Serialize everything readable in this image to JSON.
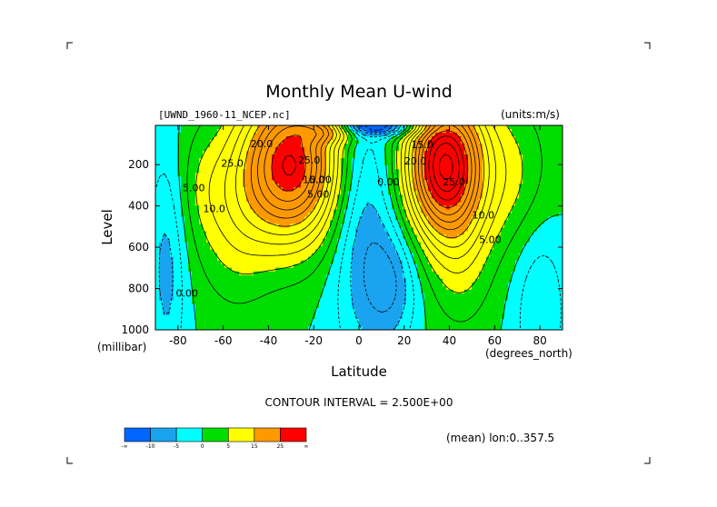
{
  "chart_data": {
    "type": "contour",
    "title": "Monthly Mean U-wind",
    "dataset_label": "[UWND_1960-11_NCEP.nc]",
    "units_label": "(units:m/s)",
    "xlabel": "Latitude",
    "ylabel": "Level",
    "x_units": "(degrees_north)",
    "y_units": "(millibar)",
    "xlim": [
      -90,
      90
    ],
    "ylim": [
      1000,
      10
    ],
    "x_ticks": [
      -80,
      -60,
      -40,
      -20,
      0,
      20,
      40,
      60,
      80
    ],
    "y_ticks": [
      200,
      400,
      600,
      800,
      1000
    ],
    "contour_interval_text": "CONTOUR INTERVAL = 2.500E+00",
    "footer_text": "(mean) lon:0..357.5",
    "jets": [
      {
        "lat": -30,
        "level": 200,
        "value": 27.5
      },
      {
        "lat": 38,
        "level": 200,
        "value": 32.5
      }
    ],
    "contour_labels": [
      {
        "text": "25.0",
        "lat": -56,
        "level": 210
      },
      {
        "text": "20.0",
        "lat": -43,
        "level": 115
      },
      {
        "text": "25.0",
        "lat": -22,
        "level": 195
      },
      {
        "text": "15.0",
        "lat": -20,
        "level": 290
      },
      {
        "text": "10.0",
        "lat": -64,
        "level": 430
      },
      {
        "text": "5.00",
        "lat": -73,
        "level": 330
      },
      {
        "text": "5.00",
        "lat": -18,
        "level": 360
      },
      {
        "text": "0.00",
        "lat": -17,
        "level": 290
      },
      {
        "text": "0.00",
        "lat": 13,
        "level": 300
      },
      {
        "text": "15.0",
        "lat": 28,
        "level": 120
      },
      {
        "text": "20.0",
        "lat": 25,
        "level": 200
      },
      {
        "text": "25.0",
        "lat": 42,
        "level": 300
      },
      {
        "text": "10.0",
        "lat": 55,
        "level": 460
      },
      {
        "text": "5.00",
        "lat": 58,
        "level": 580
      },
      {
        "text": "0.00",
        "lat": -76,
        "level": 840
      }
    ],
    "legend": {
      "type": "colorbar",
      "bins": [
        {
          "color": "#0066ff"
        },
        {
          "color": "#1aa3ee"
        },
        {
          "color": "#00ffff"
        },
        {
          "color": "#00dd00"
        },
        {
          "color": "#ffff00"
        },
        {
          "color": "#ff9900"
        },
        {
          "color": "#ff0000"
        }
      ],
      "tick_labels": [
        "-∞",
        "-10",
        "-5",
        "0",
        "5",
        "15",
        "25",
        "∞"
      ]
    }
  }
}
